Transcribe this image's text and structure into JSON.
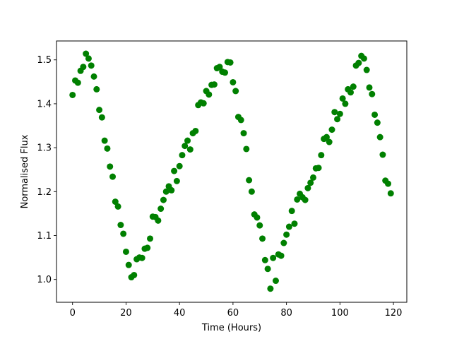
{
  "chart_data": {
    "type": "scatter",
    "xlabel": "Time (Hours)",
    "ylabel": "Normalised Flux",
    "xlim": [
      -6,
      125
    ],
    "ylim": [
      0.948,
      1.543
    ],
    "xticks": [
      0,
      20,
      40,
      60,
      80,
      100,
      120
    ],
    "xtick_labels": [
      "0",
      "20",
      "40",
      "60",
      "80",
      "100",
      "120"
    ],
    "yticks": [
      1.0,
      1.1,
      1.2,
      1.3,
      1.4,
      1.5
    ],
    "ytick_labels": [
      "1.0",
      "1.1",
      "1.2",
      "1.3",
      "1.4",
      "1.5"
    ],
    "grid": false,
    "marker_color": "#008000",
    "series": [
      {
        "x": [
          0,
          1,
          2,
          3,
          4,
          5,
          6,
          7,
          8,
          9,
          10,
          11,
          12,
          13,
          14,
          15,
          16,
          17,
          18,
          19,
          20,
          21,
          22,
          23,
          24,
          25,
          26,
          27,
          28,
          29,
          30,
          31,
          32,
          33,
          34,
          35,
          36,
          37,
          38,
          39,
          40,
          41,
          42,
          43,
          44,
          45,
          46,
          47,
          48,
          49,
          50,
          51,
          52,
          53,
          54,
          55,
          56,
          57,
          58,
          59,
          60,
          61,
          62,
          63,
          64,
          65,
          66,
          67,
          68,
          69,
          70,
          71,
          72,
          73,
          74,
          75,
          76,
          77,
          78,
          79,
          80,
          81,
          82,
          83,
          84,
          85,
          86,
          87,
          88,
          89,
          90,
          91,
          92,
          93,
          94,
          95,
          96,
          97,
          98,
          99,
          100,
          101,
          102,
          103,
          104,
          105,
          106,
          107,
          108,
          109,
          110,
          111,
          112,
          113,
          114,
          115,
          116,
          117,
          118,
          119
        ],
        "y": [
          1.42,
          1.453,
          1.448,
          1.475,
          1.484,
          1.514,
          1.503,
          1.487,
          1.462,
          1.433,
          1.386,
          1.369,
          1.316,
          1.298,
          1.257,
          1.234,
          1.177,
          1.166,
          1.124,
          1.104,
          1.063,
          1.033,
          1.005,
          1.01,
          1.046,
          1.05,
          1.049,
          1.07,
          1.072,
          1.093,
          1.143,
          1.142,
          1.134,
          1.161,
          1.181,
          1.2,
          1.212,
          1.203,
          1.247,
          1.224,
          1.258,
          1.283,
          1.304,
          1.316,
          1.296,
          1.333,
          1.338,
          1.397,
          1.403,
          1.401,
          1.429,
          1.421,
          1.443,
          1.444,
          1.481,
          1.484,
          1.473,
          1.471,
          1.495,
          1.494,
          1.449,
          1.429,
          1.37,
          1.363,
          1.333,
          1.297,
          1.226,
          1.2,
          1.148,
          1.141,
          1.123,
          1.093,
          1.044,
          1.024,
          0.979,
          1.049,
          0.997,
          1.057,
          1.054,
          1.083,
          1.102,
          1.12,
          1.156,
          1.127,
          1.182,
          1.195,
          1.187,
          1.181,
          1.208,
          1.22,
          1.232,
          1.253,
          1.254,
          1.283,
          1.32,
          1.324,
          1.313,
          1.341,
          1.381,
          1.365,
          1.377,
          1.412,
          1.4,
          1.433,
          1.426,
          1.439,
          1.487,
          1.493,
          1.509,
          1.503,
          1.477,
          1.437,
          1.422,
          1.375,
          1.357,
          1.324,
          1.284,
          1.225,
          1.218,
          1.196
        ]
      }
    ]
  }
}
